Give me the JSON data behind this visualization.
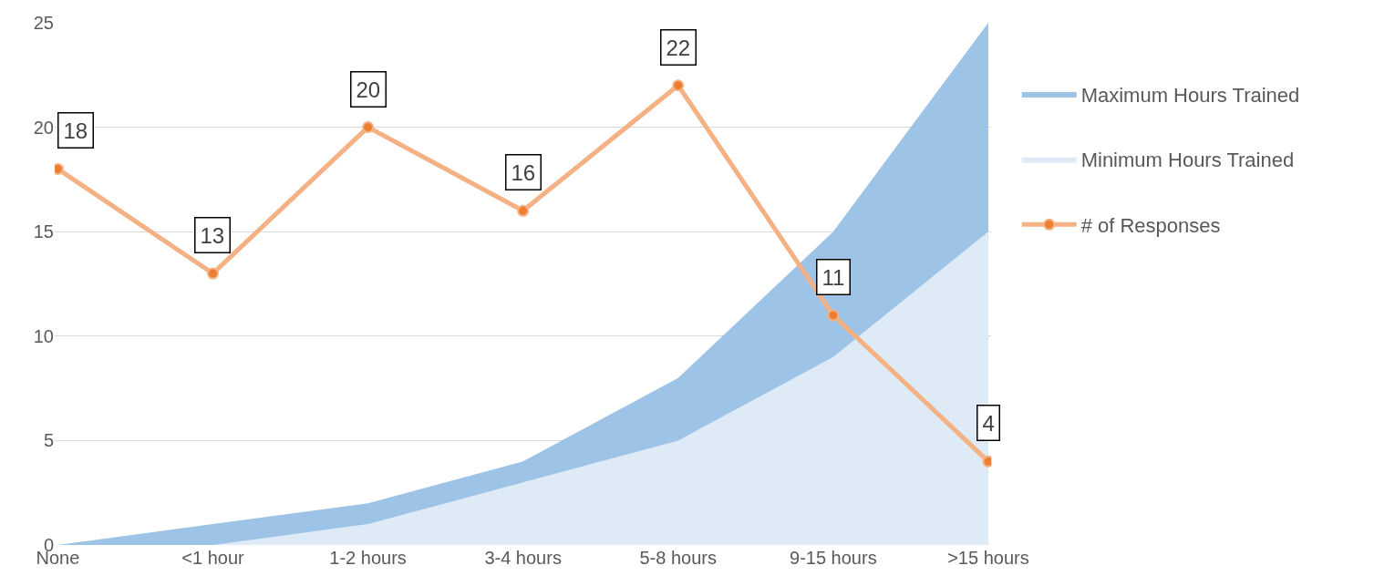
{
  "chart_data": {
    "type": "area",
    "categories": [
      "None",
      "<1 hour",
      "1-2 hours",
      "3-4 hours",
      "5-8 hours",
      "9-15 hours",
      ">15 hours"
    ],
    "series": [
      {
        "name": "Maximum Hours Trained",
        "color": "#9dc3e6",
        "values": [
          0,
          1,
          2,
          4,
          8,
          15,
          25
        ]
      },
      {
        "name": "Minimum Hours Trained",
        "color": "#deebf7",
        "values": [
          0,
          0,
          1,
          3,
          5,
          9,
          15
        ]
      },
      {
        "name": "# of Responses",
        "type": "line",
        "color": "#f4b183",
        "marker": "circle",
        "values": [
          18,
          13,
          20,
          16,
          22,
          11,
          4
        ],
        "value_labels": [
          "18",
          "13",
          "20",
          "16",
          "22",
          "11",
          "4"
        ]
      }
    ],
    "ylim": [
      0,
      25
    ],
    "yticks": [
      0,
      5,
      10,
      15,
      20,
      25
    ],
    "grid": "y",
    "legend": "right"
  }
}
